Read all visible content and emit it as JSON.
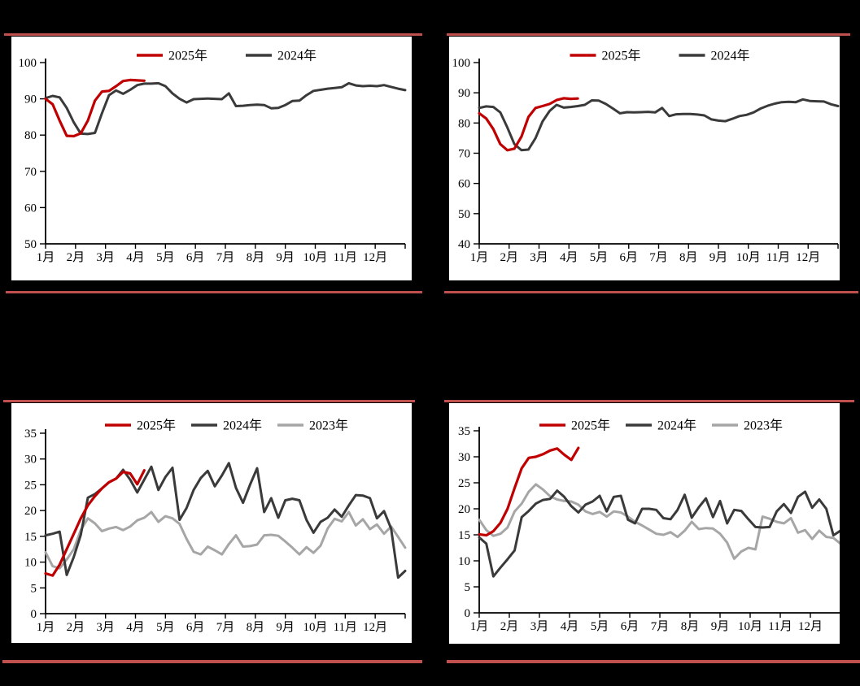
{
  "page": {
    "background_color": "#000000",
    "panel_color": "#FFFFFF",
    "rule_color": "#C0504D",
    "axis_color": "#000000",
    "text_color": "#000000"
  },
  "months": [
    "1月",
    "2月",
    "3月",
    "4月",
    "5月",
    "6月",
    "7月",
    "8月",
    "9月",
    "10月",
    "11月",
    "12月"
  ],
  "legend_labels": {
    "y2025": "2025年",
    "y2024": "2024年",
    "y2023": "2023年"
  },
  "series_colors": {
    "y2025": "#C00000",
    "y2024": "#3A3A3A",
    "y2023": "#A6A6A6"
  },
  "chart_data": [
    {
      "id": "top-left",
      "type": "line",
      "title": "",
      "ylim": [
        50,
        100
      ],
      "yticks": [
        50,
        60,
        70,
        80,
        90,
        100
      ],
      "grid": false,
      "legend_position": "top-center",
      "x_slots": 52,
      "x_tick_labels": [
        "1月",
        "2月",
        "3月",
        "4月",
        "5月",
        "6月",
        "7月",
        "8月",
        "9月",
        "10月",
        "11月",
        "12月"
      ],
      "series": [
        {
          "name": "2025年",
          "color": "#C00000",
          "stroke_width": 3.2,
          "values": [
            90,
            88.5,
            84,
            79.8,
            79.7,
            80.5,
            84,
            89.5,
            92,
            92.2,
            93.5,
            94.9,
            95.2,
            95.1,
            95
          ]
        },
        {
          "name": "2024年",
          "color": "#3A3A3A",
          "stroke_width": 3,
          "values": [
            90.2,
            90.8,
            90.4,
            87.5,
            83.5,
            80.4,
            80.3,
            80.6,
            86,
            91,
            92.3,
            91.4,
            92.5,
            93.8,
            94.2,
            94.2,
            94.3,
            93.5,
            91.5,
            90,
            89,
            89.9,
            90,
            90.1,
            90,
            89.9,
            91.5,
            88,
            88.1,
            88.3,
            88.4,
            88.3,
            87.4,
            87.5,
            88.3,
            89.4,
            89.5,
            91,
            92.2,
            92.5,
            92.8,
            93,
            93.2,
            94.3,
            93.7,
            93.5,
            93.6,
            93.5,
            93.8,
            93.3,
            92.8,
            92.4
          ]
        }
      ]
    },
    {
      "id": "top-right",
      "type": "line",
      "title": "",
      "ylim": [
        40,
        100
      ],
      "yticks": [
        40,
        50,
        60,
        70,
        80,
        90,
        100
      ],
      "grid": false,
      "legend_position": "top-center",
      "x_slots": 52,
      "x_tick_labels": [
        "1月",
        "2月",
        "3月",
        "4月",
        "5月",
        "6月",
        "7月",
        "8月",
        "9月",
        "10月",
        "11月",
        "12月"
      ],
      "series": [
        {
          "name": "2025年",
          "color": "#C00000",
          "stroke_width": 3.2,
          "values": [
            83.2,
            81.5,
            78,
            73,
            71,
            71.5,
            75.5,
            82,
            85,
            85.6,
            86.3,
            87.6,
            88.2,
            88,
            88.1
          ]
        },
        {
          "name": "2024年",
          "color": "#3A3A3A",
          "stroke_width": 3,
          "values": [
            85,
            85.5,
            85.3,
            83.5,
            78.5,
            73,
            71,
            71.2,
            75,
            80.5,
            84,
            86,
            85.1,
            85.3,
            85.6,
            86,
            87.5,
            87.4,
            86.3,
            84.8,
            83.2,
            83.6,
            83.5,
            83.6,
            83.7,
            83.5,
            85,
            82.3,
            82.9,
            83,
            83,
            82.8,
            82.5,
            81.2,
            80.8,
            80.6,
            81.4,
            82.3,
            82.7,
            83.5,
            84.8,
            85.7,
            86.4,
            86.9,
            87,
            86.9,
            87.8,
            87.3,
            87.2,
            87.1,
            86.2,
            85.6
          ]
        }
      ]
    },
    {
      "id": "bottom-left",
      "type": "line",
      "title": "",
      "ylim": [
        0,
        35
      ],
      "yticks": [
        0,
        5,
        10,
        15,
        20,
        25,
        30,
        35
      ],
      "grid": false,
      "legend_position": "top-center",
      "x_slots": 52,
      "x_tick_labels": [
        "1月",
        "2月",
        "3月",
        "4月",
        "5月",
        "6月",
        "7月",
        "8月",
        "9月",
        "10月",
        "11月",
        "12月"
      ],
      "series": [
        {
          "name": "2025年",
          "color": "#C00000",
          "stroke_width": 3.2,
          "values": [
            7.8,
            7.4,
            9.5,
            12.5,
            15.5,
            18.5,
            21,
            22.8,
            24.3,
            25.5,
            26.2,
            27.5,
            27.2,
            25.1,
            27.8
          ]
        },
        {
          "name": "2024年",
          "color": "#3A3A3A",
          "stroke_width": 3,
          "values": [
            15.2,
            15.5,
            15.9,
            7.5,
            11,
            15.3,
            22.5,
            23.2,
            24.3,
            25.5,
            26.2,
            27.9,
            26,
            23.5,
            26,
            28.5,
            24,
            26.5,
            28.3,
            18.2,
            20.5,
            24,
            26.3,
            27.7,
            24.7,
            26.8,
            29.2,
            24.4,
            21.5,
            25,
            28.2,
            19.7,
            22.4,
            18.6,
            22,
            22.3,
            22,
            18.2,
            15.7,
            17.8,
            18.6,
            20.2,
            18.8,
            21,
            23,
            22.9,
            22.4,
            18.5,
            19.9,
            16.5,
            7,
            8.3
          ]
        },
        {
          "name": "2023年",
          "color": "#A6A6A6",
          "stroke_width": 3,
          "values": [
            11.9,
            9.2,
            8.8,
            10.5,
            12.5,
            16.2,
            18.5,
            17.5,
            16,
            16.5,
            16.8,
            16.2,
            16.9,
            18.1,
            18.6,
            19.7,
            17.8,
            18.9,
            18.5,
            17.4,
            14.5,
            12,
            11.5,
            13,
            12.3,
            11.5,
            13.5,
            15.2,
            13,
            13.1,
            13.4,
            15.2,
            15.3,
            15.1,
            14,
            12.8,
            11.5,
            12.9,
            11.8,
            13.2,
            16.5,
            18.4,
            17.9,
            19.7,
            17.1,
            18.3,
            16.4,
            17.3,
            15.5,
            16.9,
            14.9,
            12.8
          ]
        }
      ]
    },
    {
      "id": "bottom-right",
      "type": "line",
      "title": "",
      "ylim": [
        0,
        35
      ],
      "yticks": [
        0,
        5,
        10,
        15,
        20,
        25,
        30,
        35
      ],
      "grid": false,
      "legend_position": "top-center",
      "x_slots": 52,
      "x_tick_labels": [
        "1月",
        "2月",
        "3月",
        "4月",
        "5月",
        "6月",
        "7月",
        "8月",
        "9月",
        "10月",
        "11月",
        "12月"
      ],
      "series": [
        {
          "name": "2025年",
          "color": "#C00000",
          "stroke_width": 3.2,
          "values": [
            15.1,
            14.9,
            15.7,
            17.3,
            20,
            24,
            27.8,
            29.8,
            30,
            30.5,
            31.2,
            31.6,
            30.4,
            29.4,
            31.7
          ]
        },
        {
          "name": "2024年",
          "color": "#3A3A3A",
          "stroke_width": 3,
          "values": [
            14.5,
            13.3,
            7,
            8.7,
            10.3,
            12,
            18.4,
            19.6,
            21,
            21.7,
            21.9,
            23.5,
            22.3,
            20.5,
            19.3,
            20.8,
            21.4,
            22.5,
            19.5,
            22.3,
            22.5,
            17.9,
            17.2,
            20,
            20,
            19.8,
            18.2,
            18,
            19.8,
            22.7,
            18.3,
            20.3,
            22,
            18.4,
            21.5,
            17.2,
            19.8,
            19.6,
            18,
            16.5,
            16.4,
            16.5,
            19.5,
            20.9,
            19.2,
            22.3,
            23.3,
            20.2,
            21.8,
            20,
            14.9,
            15.8
          ]
        },
        {
          "name": "2023年",
          "color": "#A6A6A6",
          "stroke_width": 3,
          "values": [
            17.9,
            15.9,
            14.8,
            15.2,
            16.4,
            19.5,
            21,
            23.3,
            24.7,
            23.7,
            22.4,
            21.8,
            21.5,
            21.4,
            20.8,
            19.5,
            19,
            19.4,
            18.5,
            19.5,
            19.3,
            18.5,
            17.5,
            16.8,
            16,
            15.2,
            15,
            15.5,
            14.6,
            15.8,
            17.5,
            16.1,
            16.3,
            16.2,
            15.2,
            13.5,
            10.4,
            11.8,
            12.5,
            12.2,
            18.5,
            18.1,
            17.5,
            17.2,
            18.2,
            15.4,
            15.9,
            14.2,
            15.8,
            14.6,
            14.4,
            13.3
          ]
        }
      ]
    }
  ]
}
